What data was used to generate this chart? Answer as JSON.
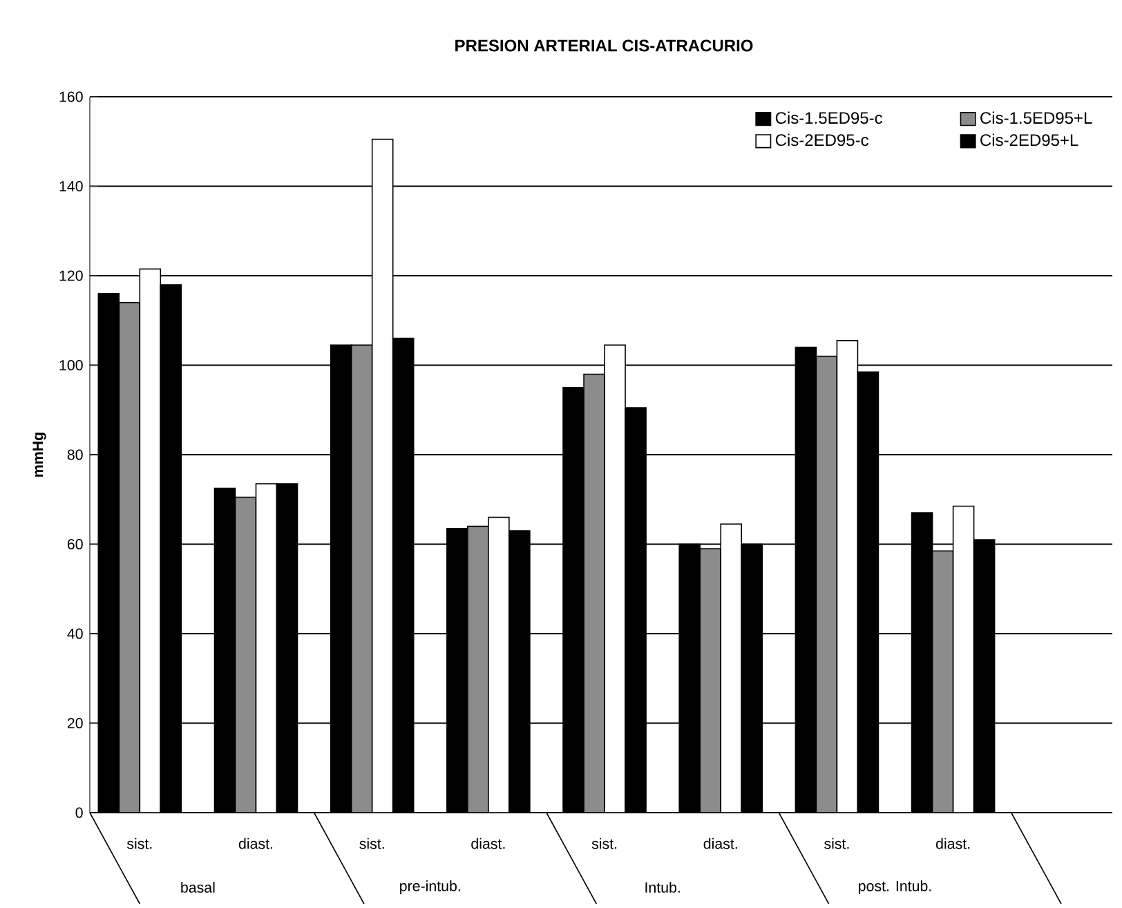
{
  "chart_data": {
    "type": "bar",
    "title": "PRESION ARTERIAL CIS-ATRACURIO",
    "ylabel": "mmHg",
    "categories": [
      "sist.",
      "diast.",
      "sist.",
      "diast.",
      "sist.",
      "diast.",
      "sist.",
      "diast."
    ],
    "annotations": [
      "basal",
      "pre-intub.",
      "Intub.",
      "post. Intub."
    ],
    "series": [
      {
        "name": "Cis-1.5ED95-c",
        "color": "#000000",
        "values": [
          116,
          72.5,
          104.5,
          63.5,
          95,
          60,
          104,
          67
        ]
      },
      {
        "name": "Cis-1.5ED95+L",
        "color": "#8c8c8c",
        "values": [
          114,
          70.5,
          104.5,
          64,
          98,
          59,
          102,
          58.5
        ]
      },
      {
        "name": "Cis-2ED95-c",
        "color": "#ffffff",
        "values": [
          121.5,
          73.5,
          150.5,
          66,
          104.5,
          64.5,
          105.5,
          68.5
        ]
      },
      {
        "name": "Cis-2ED95+L",
        "color": "#000000",
        "values": [
          118,
          73.5,
          106,
          63,
          90.5,
          60,
          98.5,
          61
        ]
      }
    ],
    "ylim": [
      0,
      160
    ],
    "yticks": [
      0,
      20,
      40,
      60,
      80,
      100,
      120,
      140,
      160
    ],
    "grid": "y",
    "legend": "top right"
  }
}
